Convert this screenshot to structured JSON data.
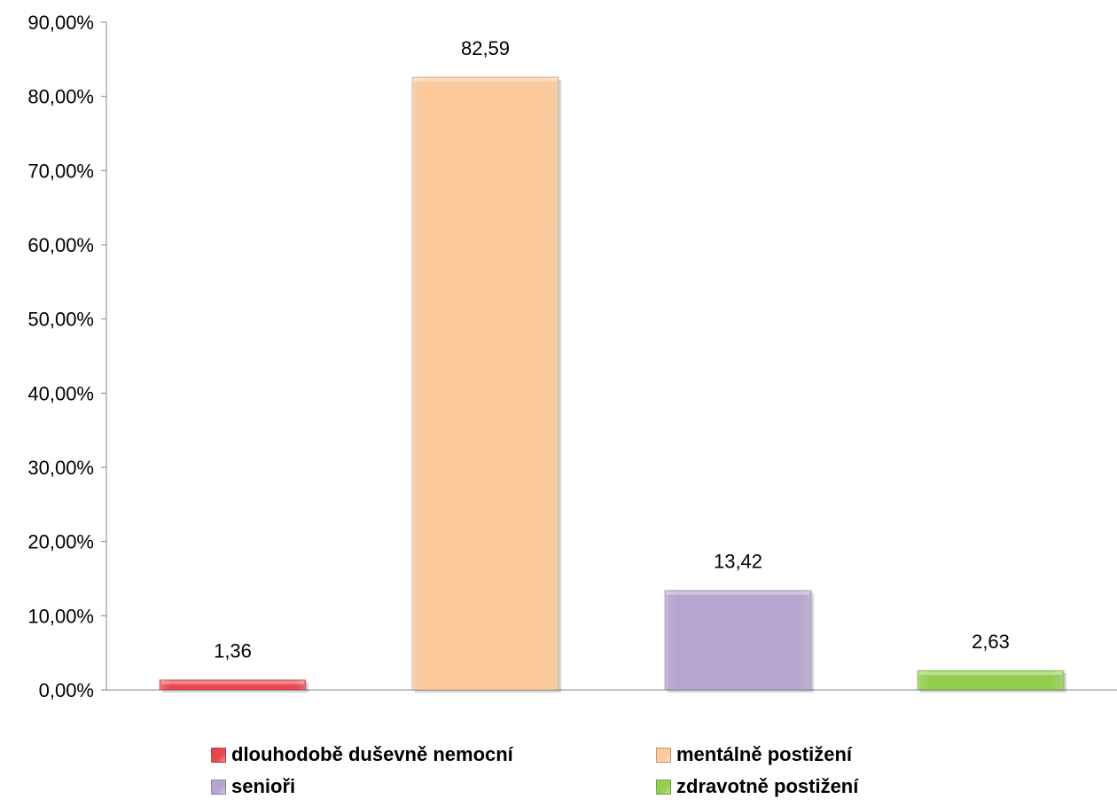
{
  "chart_data": {
    "type": "bar",
    "title": "",
    "xlabel": "",
    "ylabel": "",
    "ylim": [
      0,
      90
    ],
    "y_ticks": [
      "0,00%",
      "10,00%",
      "20,00%",
      "30,00%",
      "40,00%",
      "50,00%",
      "60,00%",
      "70,00%",
      "80,00%",
      "90,00%"
    ],
    "categories": [
      "dlouhodobě duševně nemocní",
      "mentálně postižení",
      "senioři",
      "zdravotně postižení"
    ],
    "values": [
      1.36,
      82.59,
      13.42,
      2.63
    ],
    "data_labels": [
      "1,36",
      "82,59",
      "13,42",
      "2,63"
    ],
    "colors": [
      "#e8474d",
      "#fbc99a",
      "#b6a6cf",
      "#92cf4f"
    ],
    "grid": false,
    "legend_position": "bottom"
  },
  "legend": {
    "items": [
      {
        "label": "dlouhodobě duševně nemocní",
        "color": "#e8474d"
      },
      {
        "label": "mentálně postižení",
        "color": "#fbc99a"
      },
      {
        "label": "senioři",
        "color": "#b6a6cf"
      },
      {
        "label": "zdravotně postižení",
        "color": "#92cf4f"
      }
    ]
  }
}
